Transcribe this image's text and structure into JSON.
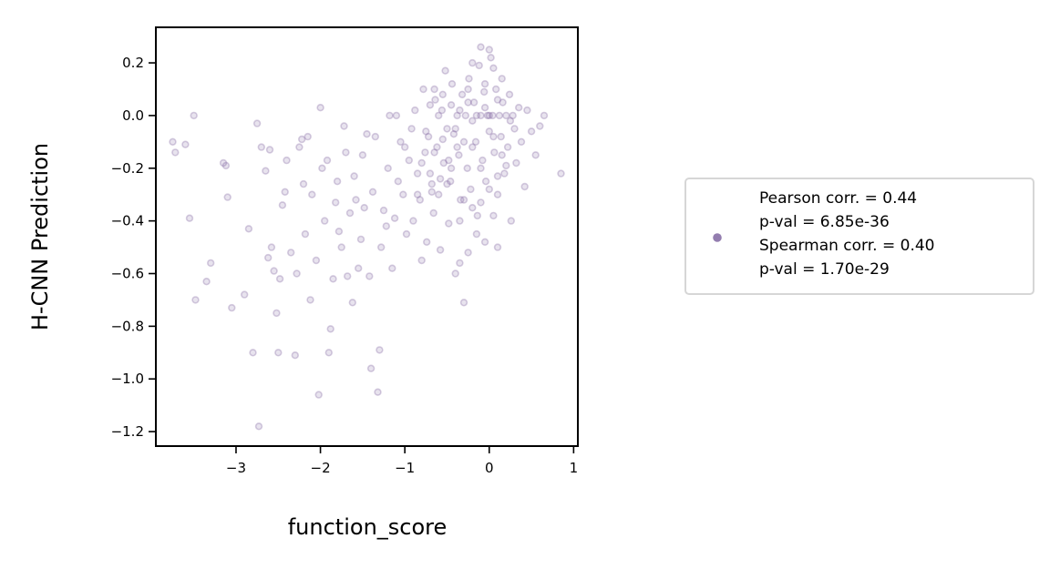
{
  "chart_data": {
    "type": "scatter",
    "xlabel": "function_score",
    "ylabel": "H-CNN Prediction",
    "xlim": [
      -3.95,
      1.05
    ],
    "ylim": [
      -1.255,
      0.335
    ],
    "xticks": [
      -3,
      -2,
      -1,
      0,
      1
    ],
    "xtick_labels": [
      "−3",
      "−2",
      "−1",
      "0",
      "1"
    ],
    "yticks": [
      0.2,
      0.0,
      -0.2,
      -0.4,
      -0.6,
      -0.8,
      -1.0,
      -1.2
    ],
    "ytick_labels": [
      "0.2",
      "0.0",
      "−0.2",
      "−0.4",
      "−0.6",
      "−0.8",
      "−1.0",
      "−1.2"
    ],
    "grid": false,
    "legend_position": "right",
    "marker_color": "#8066a1",
    "marker_alpha": 0.18,
    "legend_lines": [
      "Pearson corr. = 0.44",
      "p-val = 6.85e-36",
      "Spearman corr. = 0.40",
      "p-val = 1.70e-29"
    ],
    "points": [
      [
        -3.75,
        -0.1
      ],
      [
        -3.72,
        -0.14
      ],
      [
        -3.6,
        -0.11
      ],
      [
        -3.55,
        -0.39
      ],
      [
        -3.5,
        0.0
      ],
      [
        -3.48,
        -0.7
      ],
      [
        -3.35,
        -0.63
      ],
      [
        -3.3,
        -0.56
      ],
      [
        -3.15,
        -0.18
      ],
      [
        -3.12,
        -0.19
      ],
      [
        -3.1,
        -0.31
      ],
      [
        -3.05,
        -0.73
      ],
      [
        -2.9,
        -0.68
      ],
      [
        -2.85,
        -0.43
      ],
      [
        -2.8,
        -0.9
      ],
      [
        -2.75,
        -0.03
      ],
      [
        -2.73,
        -1.18
      ],
      [
        -2.7,
        -0.12
      ],
      [
        -2.65,
        -0.21
      ],
      [
        -2.62,
        -0.54
      ],
      [
        -2.6,
        -0.13
      ],
      [
        -2.58,
        -0.5
      ],
      [
        -2.55,
        -0.59
      ],
      [
        -2.52,
        -0.75
      ],
      [
        -2.5,
        -0.9
      ],
      [
        -2.48,
        -0.62
      ],
      [
        -2.45,
        -0.34
      ],
      [
        -2.42,
        -0.29
      ],
      [
        -2.4,
        -0.17
      ],
      [
        -2.35,
        -0.52
      ],
      [
        -2.3,
        -0.91
      ],
      [
        -2.28,
        -0.6
      ],
      [
        -2.25,
        -0.12
      ],
      [
        -2.22,
        -0.09
      ],
      [
        -2.2,
        -0.26
      ],
      [
        -2.18,
        -0.45
      ],
      [
        -2.15,
        -0.08
      ],
      [
        -2.12,
        -0.7
      ],
      [
        -2.1,
        -0.3
      ],
      [
        -2.05,
        -0.55
      ],
      [
        -2.02,
        -1.06
      ],
      [
        -2.0,
        0.03
      ],
      [
        -1.98,
        -0.2
      ],
      [
        -1.95,
        -0.4
      ],
      [
        -1.92,
        -0.17
      ],
      [
        -1.9,
        -0.9
      ],
      [
        -1.88,
        -0.81
      ],
      [
        -1.85,
        -0.62
      ],
      [
        -1.82,
        -0.33
      ],
      [
        -1.8,
        -0.25
      ],
      [
        -1.78,
        -0.44
      ],
      [
        -1.75,
        -0.5
      ],
      [
        -1.72,
        -0.04
      ],
      [
        -1.7,
        -0.14
      ],
      [
        -1.68,
        -0.61
      ],
      [
        -1.65,
        -0.37
      ],
      [
        -1.62,
        -0.71
      ],
      [
        -1.6,
        -0.23
      ],
      [
        -1.58,
        -0.32
      ],
      [
        -1.55,
        -0.58
      ],
      [
        -1.52,
        -0.47
      ],
      [
        -1.5,
        -0.15
      ],
      [
        -1.48,
        -0.35
      ],
      [
        -1.45,
        -0.07
      ],
      [
        -1.42,
        -0.61
      ],
      [
        -1.4,
        -0.96
      ],
      [
        -1.38,
        -0.29
      ],
      [
        -1.35,
        -0.08
      ],
      [
        -1.32,
        -1.05
      ],
      [
        -1.3,
        -0.89
      ],
      [
        -1.28,
        -0.5
      ],
      [
        -1.25,
        -0.36
      ],
      [
        -1.22,
        -0.42
      ],
      [
        -1.2,
        -0.2
      ],
      [
        -1.18,
        0.0
      ],
      [
        -1.15,
        -0.58
      ],
      [
        -1.12,
        -0.39
      ],
      [
        -1.1,
        0.0
      ],
      [
        -1.08,
        -0.25
      ],
      [
        -1.05,
        -0.1
      ],
      [
        -1.02,
        -0.3
      ],
      [
        -1.0,
        -0.12
      ],
      [
        -0.98,
        -0.45
      ],
      [
        -0.95,
        -0.17
      ],
      [
        -0.92,
        -0.05
      ],
      [
        -0.9,
        -0.4
      ],
      [
        -0.88,
        0.02
      ],
      [
        -0.85,
        -0.22
      ],
      [
        -0.82,
        -0.32
      ],
      [
        -0.8,
        -0.55
      ],
      [
        -0.78,
        0.1
      ],
      [
        -0.76,
        -0.14
      ],
      [
        -0.74,
        -0.48
      ],
      [
        -0.72,
        -0.08
      ],
      [
        -0.7,
        0.04
      ],
      [
        -0.68,
        -0.26
      ],
      [
        -0.66,
        -0.37
      ],
      [
        -0.64,
        0.06
      ],
      [
        -0.62,
        -0.12
      ],
      [
        -0.6,
        -0.3
      ],
      [
        -0.58,
        -0.51
      ],
      [
        -0.56,
        0.02
      ],
      [
        -0.54,
        -0.18
      ],
      [
        -0.52,
        0.17
      ],
      [
        -0.5,
        -0.05
      ],
      [
        -0.48,
        -0.41
      ],
      [
        -0.46,
        -0.25
      ],
      [
        -0.44,
        0.12
      ],
      [
        -0.42,
        -0.07
      ],
      [
        -0.4,
        -0.6
      ],
      [
        -0.38,
        0.0
      ],
      [
        -0.36,
        -0.15
      ],
      [
        -0.34,
        -0.32
      ],
      [
        -0.32,
        0.08
      ],
      [
        -0.3,
        -0.71
      ],
      [
        -0.28,
        0.0
      ],
      [
        -0.26,
        -0.2
      ],
      [
        -0.24,
        0.14
      ],
      [
        -0.22,
        -0.28
      ],
      [
        -0.2,
        -0.02
      ],
      [
        -0.18,
        0.05
      ],
      [
        -0.16,
        -0.1
      ],
      [
        -0.14,
        -0.38
      ],
      [
        -0.12,
        0.19
      ],
      [
        -0.1,
        0.0
      ],
      [
        -0.08,
        -0.17
      ],
      [
        -0.06,
        0.09
      ],
      [
        -0.04,
        -0.25
      ],
      [
        -0.02,
        0.0
      ],
      [
        0.0,
        -0.06
      ],
      [
        0.02,
        0.22
      ],
      [
        0.04,
        0.0
      ],
      [
        0.06,
        -0.14
      ],
      [
        0.08,
        0.1
      ],
      [
        0.1,
        -0.3
      ],
      [
        0.12,
        0.0
      ],
      [
        0.14,
        -0.08
      ],
      [
        0.16,
        0.05
      ],
      [
        0.18,
        -0.22
      ],
      [
        0.2,
        0.0
      ],
      [
        0.22,
        -0.12
      ],
      [
        0.24,
        0.08
      ],
      [
        0.26,
        -0.4
      ],
      [
        0.28,
        0.0
      ],
      [
        0.3,
        -0.05
      ],
      [
        0.32,
        -0.18
      ],
      [
        0.35,
        0.03
      ],
      [
        0.38,
        -0.1
      ],
      [
        0.42,
        -0.27
      ],
      [
        0.45,
        0.02
      ],
      [
        0.5,
        -0.06
      ],
      [
        0.55,
        -0.15
      ],
      [
        0.6,
        -0.04
      ],
      [
        0.65,
        0.0
      ],
      [
        0.85,
        -0.22
      ],
      [
        -0.4,
        -0.05
      ],
      [
        -0.35,
        0.02
      ],
      [
        -0.3,
        -0.1
      ],
      [
        -0.25,
        0.05
      ],
      [
        -0.2,
        -0.12
      ],
      [
        -0.15,
        0.0
      ],
      [
        -0.1,
        -0.2
      ],
      [
        -0.05,
        0.03
      ],
      [
        0.0,
        0.0
      ],
      [
        0.05,
        -0.08
      ],
      [
        0.1,
        0.06
      ],
      [
        0.15,
        -0.15
      ],
      [
        -0.55,
        -0.09
      ],
      [
        -0.45,
        -0.2
      ],
      [
        -0.6,
        0.0
      ],
      [
        -0.65,
        -0.14
      ],
      [
        -0.7,
        -0.22
      ],
      [
        -0.75,
        -0.06
      ],
      [
        -0.8,
        -0.18
      ],
      [
        -0.85,
        -0.3
      ],
      [
        -0.5,
        -0.26
      ],
      [
        -0.3,
        -0.32
      ],
      [
        -0.2,
        -0.35
      ],
      [
        -0.1,
        -0.33
      ],
      [
        0.0,
        -0.28
      ],
      [
        0.1,
        -0.23
      ],
      [
        0.2,
        -0.19
      ],
      [
        -0.35,
        -0.4
      ],
      [
        -0.15,
        -0.45
      ],
      [
        0.05,
        -0.38
      ],
      [
        -0.25,
        0.1
      ],
      [
        -0.05,
        0.12
      ],
      [
        0.15,
        0.14
      ],
      [
        0.25,
        -0.02
      ],
      [
        -0.45,
        0.04
      ],
      [
        -0.55,
        0.08
      ],
      [
        -0.65,
        0.1
      ],
      [
        0.0,
        0.25
      ],
      [
        -0.1,
        0.26
      ],
      [
        0.05,
        0.18
      ],
      [
        -0.2,
        0.2
      ],
      [
        -0.38,
        -0.12
      ],
      [
        -0.48,
        -0.17
      ],
      [
        -0.58,
        -0.24
      ],
      [
        -0.68,
        -0.29
      ],
      [
        -0.05,
        -0.48
      ],
      [
        0.1,
        -0.5
      ],
      [
        -0.25,
        -0.52
      ],
      [
        -0.35,
        -0.56
      ]
    ]
  }
}
